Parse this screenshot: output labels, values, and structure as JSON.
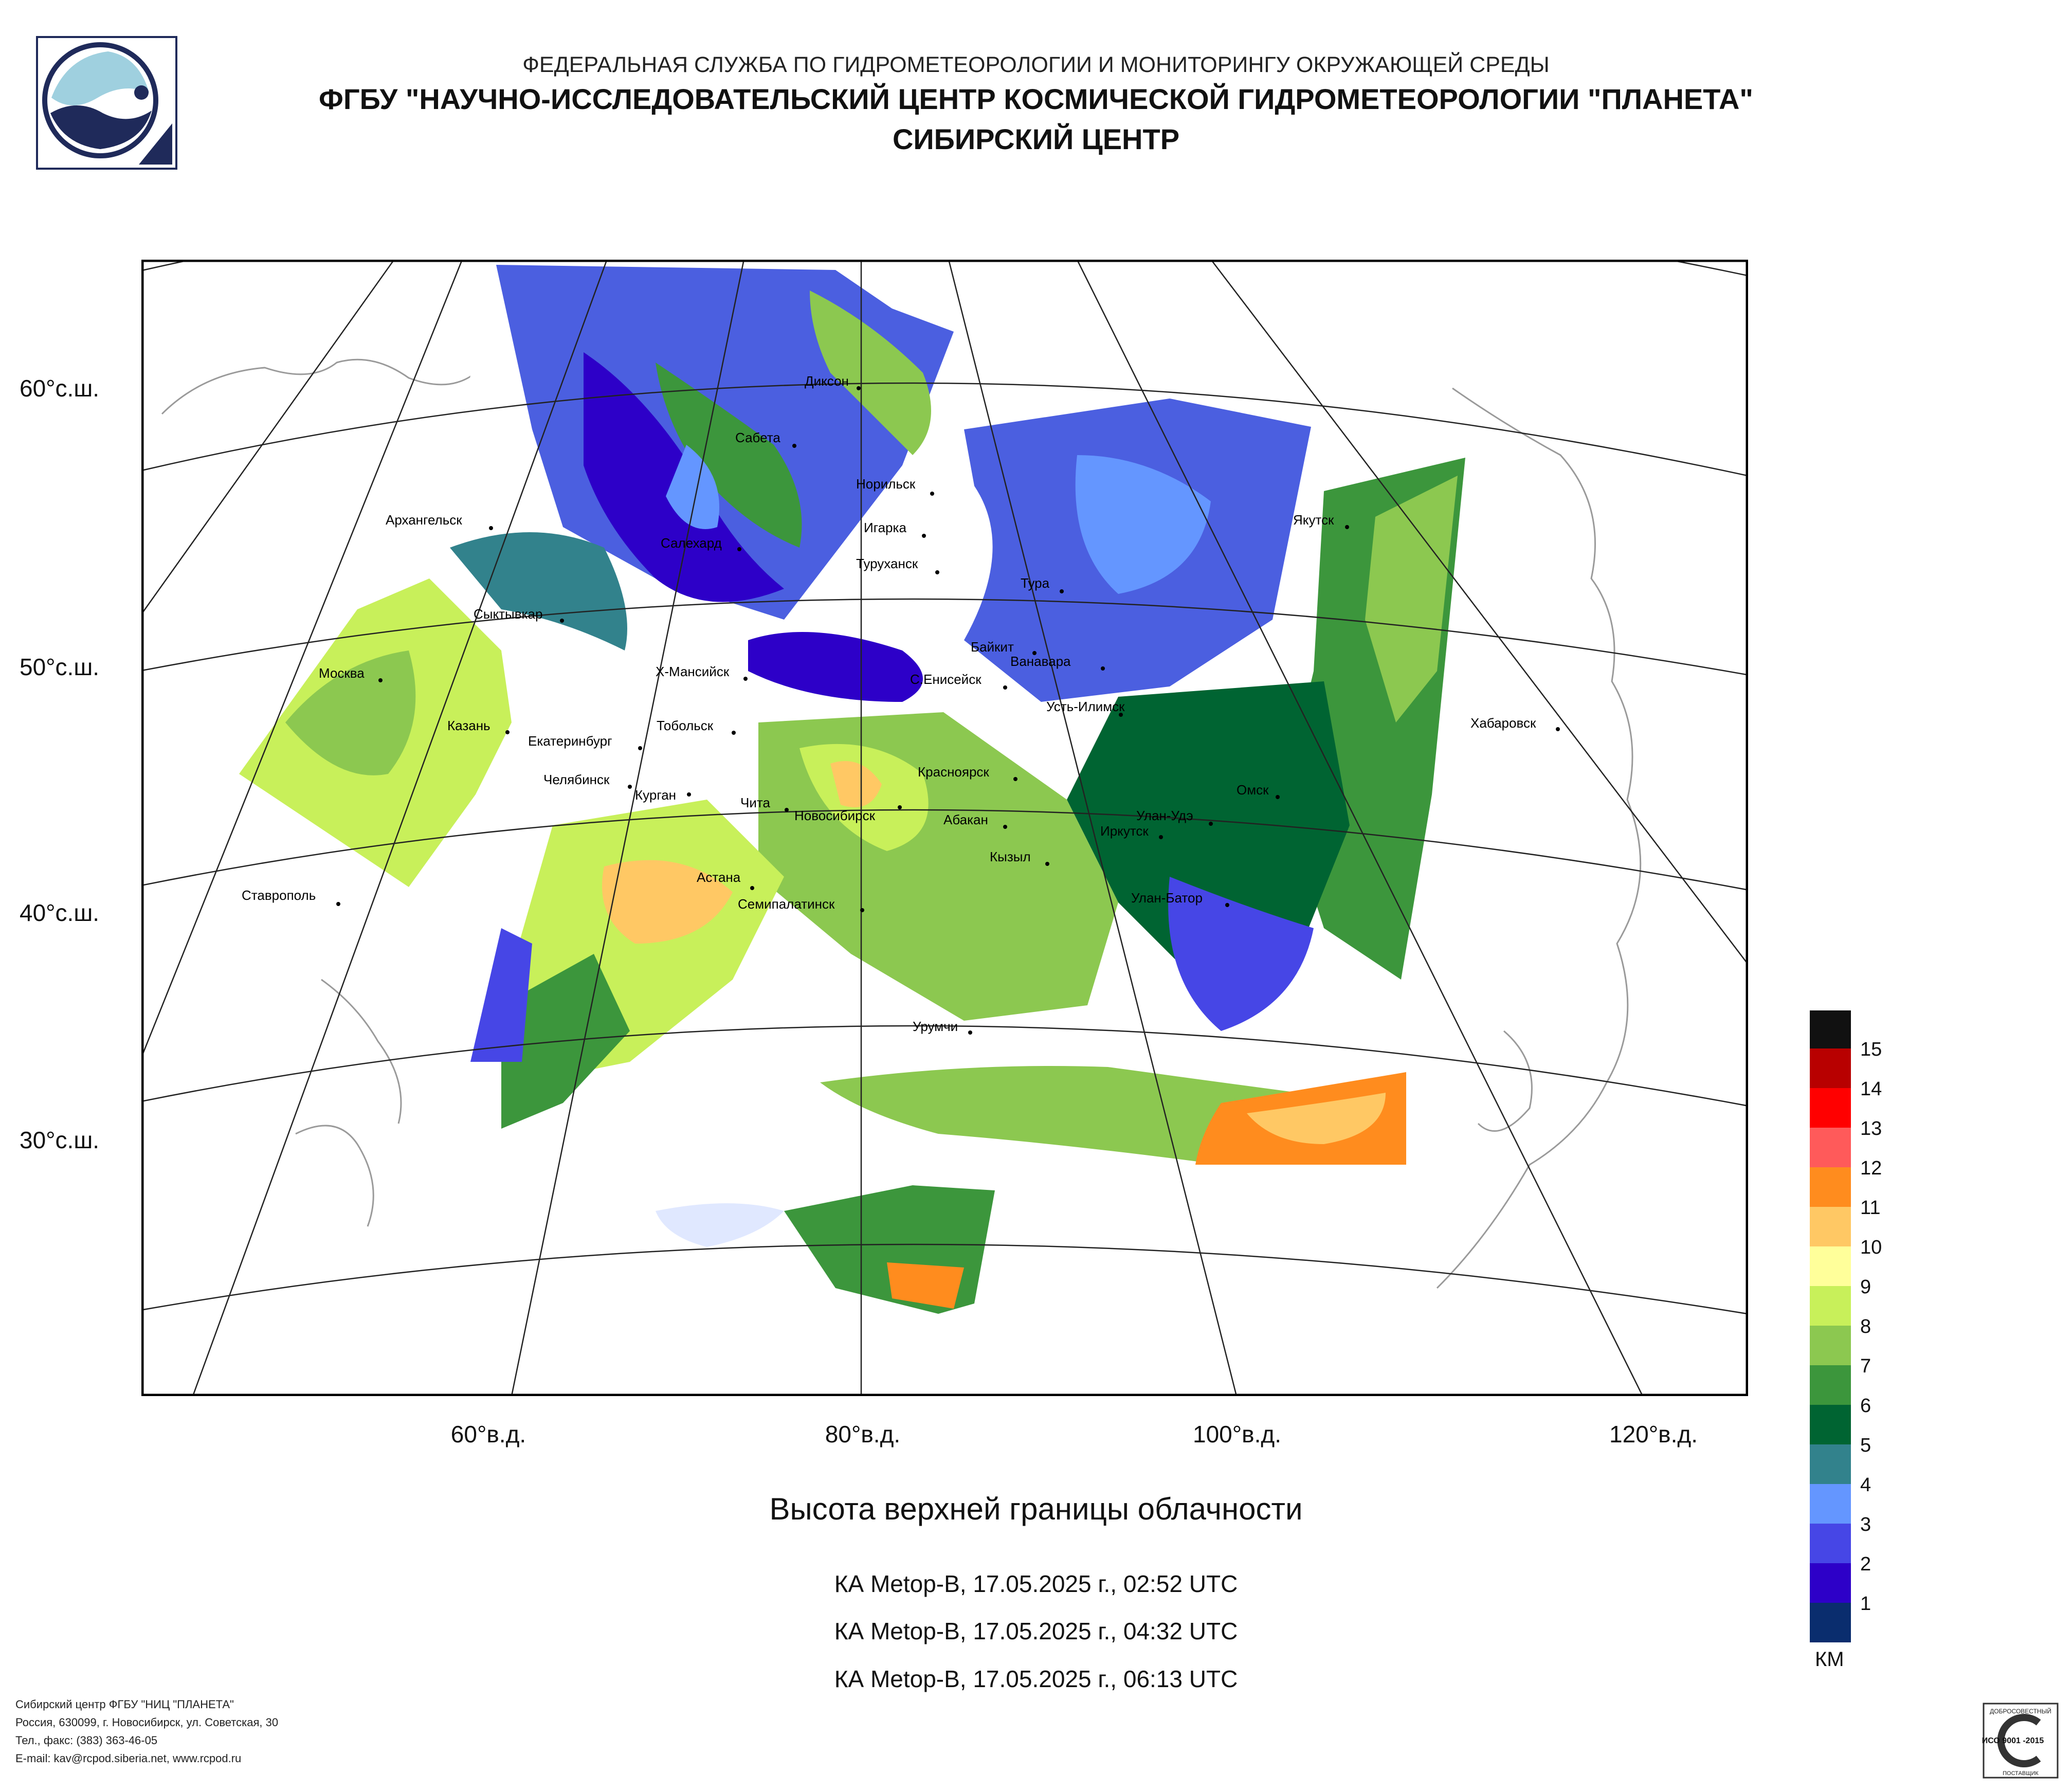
{
  "header": {
    "line1": "ФЕДЕРАЛЬНАЯ СЛУЖБА ПО ГИДРОМЕТЕОРОЛОГИИ И МОНИТОРИНГУ ОКРУЖАЮЩЕЙ СРЕДЫ",
    "line2": "ФГБУ \"НАУЧНО-ИССЛЕДОВАТЕЛЬСКИЙ ЦЕНТР КОСМИЧЕСКОЙ ГИДРОМЕТЕОРОЛОГИИ \"ПЛАНЕТА\"",
    "line3": "СИБИРСКИЙ ЦЕНТР"
  },
  "map": {
    "lat_labels": [
      "60°с.ш.",
      "50°с.ш.",
      "40°с.ш.",
      "30°с.ш."
    ],
    "lon_labels": [
      "60°в.д.",
      "80°в.д.",
      "100°в.д.",
      "120°в.д."
    ],
    "cities": [
      "Диксон",
      "Сабета",
      "Норильск",
      "Якутск",
      "Архангельск",
      "Салехард",
      "Игарка",
      "Туруханск",
      "Тура",
      "Сыктывкар",
      "Байкит",
      "Ванавара",
      "Москва",
      "Х-Мансийск",
      "С.Енисейск",
      "Усть-Илимск",
      "Хабаровск",
      "Казань",
      "Тобольск",
      "Екатеринбург",
      "Красноярск",
      "Челябинск",
      "Курган",
      "Омск",
      "Чита",
      "Новосибирск",
      "Абакан",
      "Улан-Удэ",
      "Иркутск",
      "Кызыл",
      "Астана",
      "Ставрополь",
      "Семипалатинск",
      "Улан-Батор",
      "Урумчи"
    ]
  },
  "caption": {
    "title": "Высота верхней границы облачности",
    "passes": [
      "КА Metop-B, 17.05.2025 г., 02:52 UTC",
      "КА Metop-B, 17.05.2025 г., 04:32 UTC",
      "КА Metop-B, 17.05.2025 г., 06:13 UTC"
    ]
  },
  "legend": {
    "unit": "КМ",
    "labels": [
      "15",
      "14",
      "13",
      "12",
      "11",
      "10",
      "9",
      "8",
      "7",
      "6",
      "5",
      "4",
      "3",
      "2",
      "1"
    ],
    "colors": [
      "#111111",
      "#b80000",
      "#ff0000",
      "#ff5a5a",
      "#ff8c1e",
      "#ffc864",
      "#ffff9a",
      "#c8f05a",
      "#8cc850",
      "#3c963c",
      "#006432",
      "#32828c",
      "#6496ff",
      "#4646e6",
      "#2d00c8",
      "#0a2d6e"
    ]
  },
  "footer": {
    "line1": "Сибирский центр ФГБУ \"НИЦ \"ПЛАНЕТА\"",
    "line2": "Россия, 630099, г. Новосибирск, ул. Советская, 30",
    "line3": "Тел., факс: (383) 363-46-05",
    "line4": "E-mail: kav@rcpod.siberia.net, www.rcpod.ru"
  },
  "cert": {
    "top": "ДОБРОСОВЕСТНЫЙ",
    "std": "ИСО 9001 -2015",
    "bottom": "ПОСТАВЩИК"
  }
}
